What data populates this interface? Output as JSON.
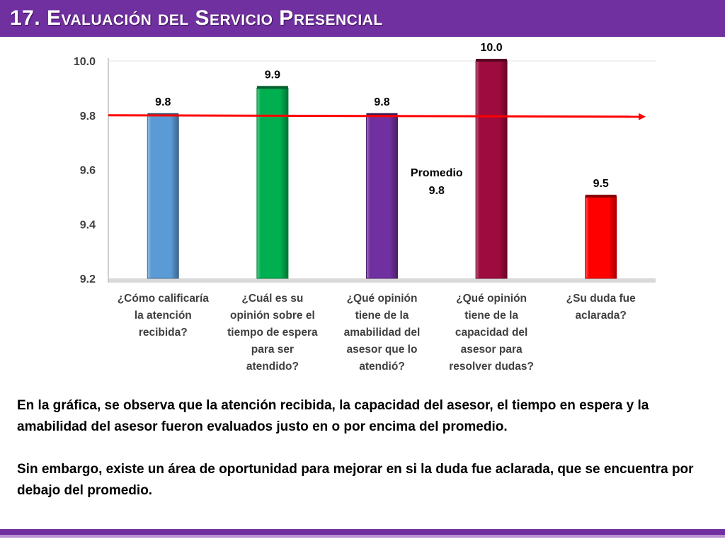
{
  "page": {
    "title": "17. Evaluación del Servicio Presencial",
    "accent_color": "#7030a0"
  },
  "chart_data": {
    "type": "bar",
    "title": "",
    "xlabel": "",
    "ylabel": "",
    "ylim": [
      9.2,
      10.0
    ],
    "yticks": [
      "10.0",
      "9.8",
      "9.6",
      "9.4",
      "9.2"
    ],
    "grid": false,
    "categories": [
      [
        "¿Cómo calificaría",
        "la atención",
        "recibida?"
      ],
      [
        "¿Cuál es su",
        "opinión sobre el",
        "tiempo de espera",
        "para ser",
        "atendido?"
      ],
      [
        "¿Qué opinión",
        "tiene de la",
        "amabilidad del",
        "asesor que lo",
        "atendió?"
      ],
      [
        "¿Qué opinión",
        "tiene de la",
        "capacidad del",
        "asesor para",
        "resolver dudas?"
      ],
      [
        "¿Su duda fue",
        "aclarada?"
      ]
    ],
    "values": [
      9.8,
      9.9,
      9.8,
      10.0,
      9.5
    ],
    "value_labels": [
      "9.8",
      "9.9",
      "9.8",
      "10.0",
      "9.5"
    ],
    "bar_colors": [
      "#5b9bd5",
      "#00b050",
      "#7030a0",
      "#9e0b3e",
      "#ff0000"
    ],
    "average": {
      "value": 9.8,
      "label": "Promedio",
      "value_label": "9.8",
      "color": "#ff0000"
    }
  },
  "text": {
    "paragraph1": "En la gráfica, se observa que la atención recibida, la capacidad del asesor, el tiempo en espera y la amabilidad del asesor fueron evaluados justo en o por encima del promedio.",
    "paragraph2": "Sin embargo, existe un área de oportunidad para mejorar en si la duda fue aclarada, que se encuentra por debajo del promedio."
  }
}
